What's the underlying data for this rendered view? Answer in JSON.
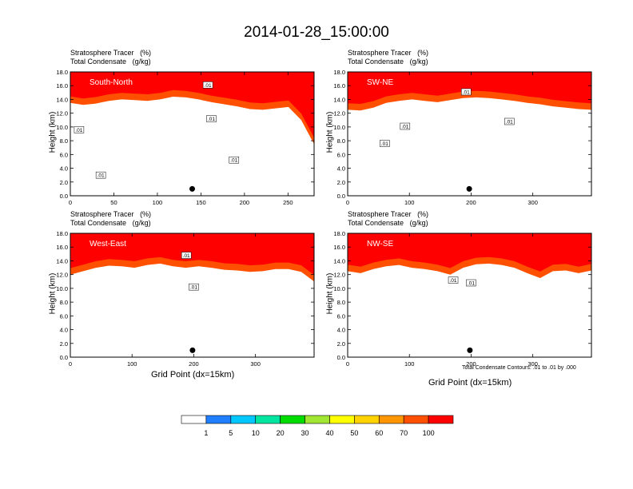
{
  "main_title": "2014-01-28_15:00:00",
  "panel_header": {
    "line1_name": "Stratosphere Tracer",
    "line1_unit": "(%)",
    "line2_name": "Total Condensate",
    "line2_unit": "(g/kg)"
  },
  "y_axis_label": "Height (km)",
  "x_axis_label": "Grid Point (dx=15km)",
  "contour_note": "Total Condensate Contours: .01 to .01 by .000",
  "colors": {
    "levels": [
      "#ffffff",
      "#1f7fff",
      "#00c8ff",
      "#00e6a0",
      "#00dc00",
      "#a0e632",
      "#ffff00",
      "#ffd200",
      "#ff9600",
      "#ff5000",
      "#ff0000"
    ]
  },
  "colorbar_labels": [
    "1",
    "5",
    "10",
    "20",
    "30",
    "40",
    "50",
    "60",
    "70",
    "100"
  ],
  "chart_data": [
    {
      "type": "heatmap",
      "label": "South-North",
      "xlim": [
        0,
        280
      ],
      "ylim": [
        0,
        18
      ],
      "x_ticks": [
        "0",
        "50",
        "100",
        "150",
        "200",
        "250"
      ],
      "x_tick_values": [
        0,
        50,
        100,
        150,
        200,
        250
      ],
      "y_ticks": [
        "0.0",
        "2.0",
        "4.0",
        "6.0",
        "8.0",
        "10.0",
        "12.0",
        "14.0",
        "16.0",
        "18.0"
      ],
      "tracer_top_km": [
        15.5,
        15.2,
        15.4,
        15.8,
        16.0,
        15.9,
        15.8,
        16.0,
        16.4,
        16.3,
        16.0,
        15.6,
        15.3,
        15.0,
        14.6,
        14.5,
        14.7,
        14.9,
        13.0,
        9.5
      ],
      "marker": {
        "x": 140,
        "y": 1.0
      },
      "contour_labels": [
        {
          "text": ".01",
          "x": 10,
          "y": 9.6
        },
        {
          "text": ".01",
          "x": 35,
          "y": 3.0
        },
        {
          "text": ".01",
          "x": 158,
          "y": 16.1
        },
        {
          "text": ".01",
          "x": 162,
          "y": 11.2
        },
        {
          "text": ".01",
          "x": 188,
          "y": 5.2
        }
      ]
    },
    {
      "type": "heatmap",
      "label": "SW-NE",
      "xlim": [
        0,
        395
      ],
      "ylim": [
        0,
        18
      ],
      "x_ticks": [
        "0",
        "100",
        "200",
        "300"
      ],
      "x_tick_values": [
        0,
        100,
        200,
        300
      ],
      "y_ticks": [
        "0.0",
        "2.0",
        "4.0",
        "6.0",
        "8.0",
        "10.0",
        "12.0",
        "14.0",
        "16.0",
        "18.0"
      ],
      "tracer_top_km": [
        14.5,
        14.4,
        14.8,
        15.5,
        15.8,
        16.0,
        15.8,
        15.6,
        15.9,
        16.2,
        16.3,
        16.2,
        16.0,
        15.8,
        15.5,
        15.3,
        15.0,
        14.8,
        14.6,
        14.5
      ],
      "marker": {
        "x": 197,
        "y": 1.0
      },
      "contour_labels": [
        {
          "text": ".01",
          "x": 60,
          "y": 7.6
        },
        {
          "text": ".01",
          "x": 93,
          "y": 10.1
        },
        {
          "text": ".01",
          "x": 192,
          "y": 15.1
        },
        {
          "text": ".01",
          "x": 262,
          "y": 10.8
        }
      ]
    },
    {
      "type": "heatmap",
      "label": "West-East",
      "xlim": [
        0,
        395
      ],
      "ylim": [
        0,
        18
      ],
      "x_ticks": [
        "0",
        "100",
        "200",
        "300"
      ],
      "x_tick_values": [
        0,
        100,
        200,
        300
      ],
      "y_ticks": [
        "0.0",
        "2.0",
        "4.0",
        "6.0",
        "8.0",
        "10.0",
        "12.0",
        "14.0",
        "16.0",
        "18.0"
      ],
      "tracer_top_km": [
        14.0,
        14.5,
        15.0,
        15.3,
        15.2,
        15.0,
        15.4,
        15.6,
        15.2,
        15.0,
        15.2,
        15.0,
        14.7,
        14.6,
        14.4,
        14.5,
        14.8,
        14.8,
        14.4,
        13.0
      ],
      "marker": {
        "x": 198,
        "y": 1.0
      },
      "contour_labels": [
        {
          "text": ".01",
          "x": 188,
          "y": 14.8
        },
        {
          "text": ".01",
          "x": 200,
          "y": 10.2
        }
      ]
    },
    {
      "type": "heatmap",
      "label": "NW-SE",
      "xlim": [
        0,
        395
      ],
      "ylim": [
        0,
        18
      ],
      "x_ticks": [
        "0",
        "100",
        "200",
        "300"
      ],
      "x_tick_values": [
        0,
        100,
        200,
        300
      ],
      "y_ticks": [
        "0.0",
        "2.0",
        "4.0",
        "6.0",
        "8.0",
        "10.0",
        "12.0",
        "14.0",
        "16.0",
        "18.0"
      ],
      "tracer_top_km": [
        14.5,
        14.2,
        14.8,
        15.2,
        15.4,
        15.0,
        14.8,
        14.5,
        14.0,
        15.0,
        15.5,
        15.6,
        15.4,
        15.0,
        14.2,
        13.5,
        14.5,
        14.6,
        14.2,
        14.6
      ],
      "marker": {
        "x": 198,
        "y": 1.0
      },
      "contour_labels": [
        {
          "text": ".01",
          "x": 171,
          "y": 11.2
        },
        {
          "text": ".01",
          "x": 200,
          "y": 10.8
        }
      ]
    }
  ]
}
